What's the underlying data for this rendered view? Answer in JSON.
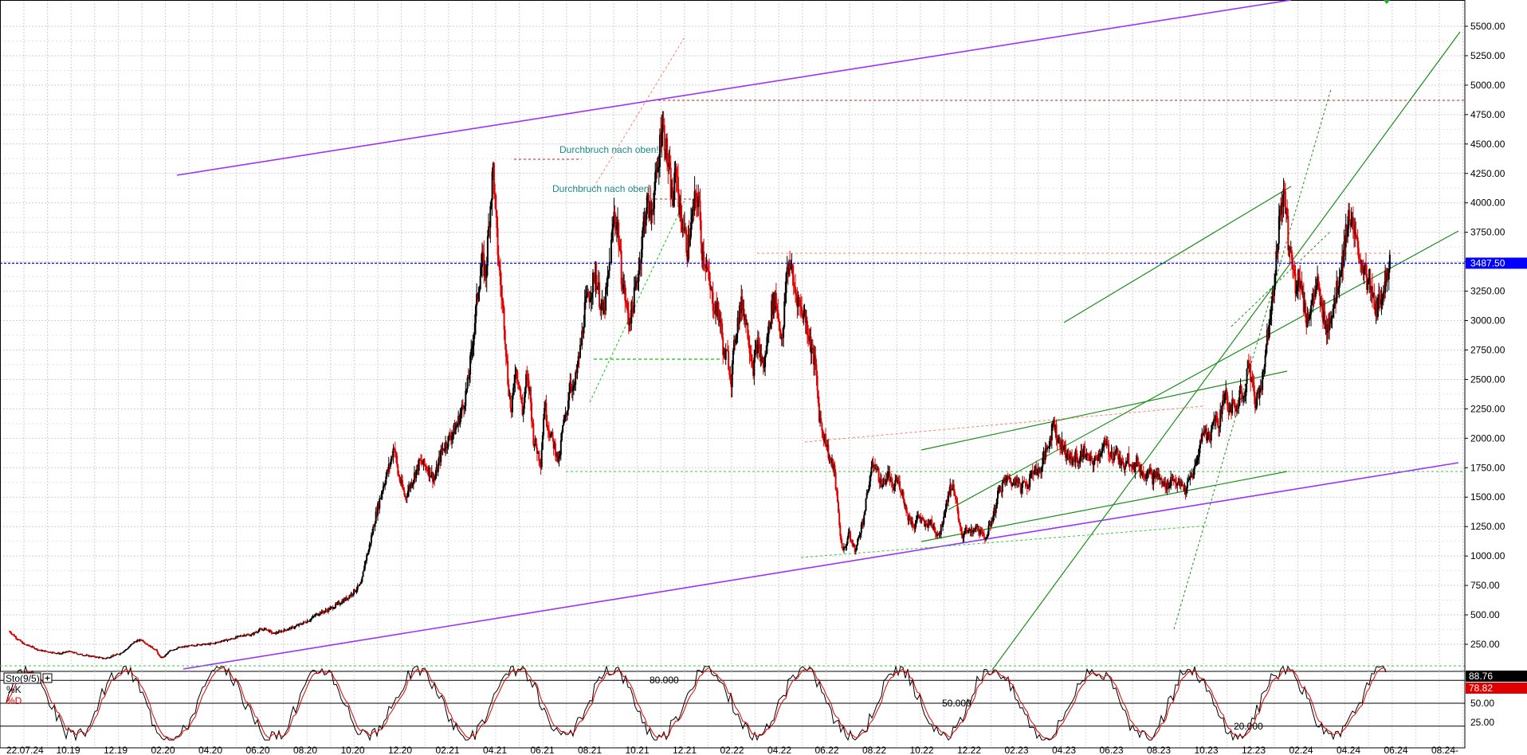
{
  "chart_data": {
    "type": "candlestick",
    "main": {
      "y_ticks": [
        "5500.00",
        "5250.00",
        "5000.00",
        "4750.00",
        "4500.00",
        "4250.00",
        "4000.00",
        "3750.00",
        "3500.00",
        "3250.00",
        "3000.00",
        "2750.00",
        "2500.00",
        "2250.00",
        "2000.00",
        "1750.00",
        "1500.00",
        "1250.00",
        "1000.00",
        "750.00",
        "500.00",
        "250.00"
      ],
      "y_tick_values": [
        5500,
        5250,
        5000,
        4750,
        4500,
        4250,
        4000,
        3750,
        3500,
        3250,
        3000,
        2750,
        2500,
        2250,
        2000,
        1750,
        1500,
        1250,
        1000,
        750,
        500,
        250
      ],
      "ylim": [
        70,
        5720
      ],
      "current_price": "3487.50",
      "current_price_value": 3487.5,
      "annotations": [
        {
          "text": "Durchbruch nach oben!",
          "value": 4450
        },
        {
          "text": "Durchbruch nach oben!",
          "value": 4120
        }
      ],
      "price_path": [
        [
          0,
          360
        ],
        [
          0.5,
          330
        ],
        [
          1,
          300
        ],
        [
          2,
          250
        ],
        [
          3,
          230
        ],
        [
          4,
          200
        ],
        [
          5,
          190
        ],
        [
          6,
          180
        ],
        [
          7,
          170
        ],
        [
          8,
          190
        ],
        [
          9,
          175
        ],
        [
          10,
          160
        ],
        [
          11,
          150
        ],
        [
          12,
          140
        ],
        [
          13,
          130
        ],
        [
          14,
          150
        ],
        [
          15,
          170
        ],
        [
          16,
          210
        ],
        [
          17,
          270
        ],
        [
          18,
          290
        ],
        [
          19,
          240
        ],
        [
          20,
          200
        ],
        [
          20.5,
          140
        ],
        [
          21,
          140
        ],
        [
          22,
          200
        ],
        [
          23,
          220
        ],
        [
          24,
          230
        ],
        [
          25,
          240
        ],
        [
          26,
          250
        ],
        [
          27,
          250
        ],
        [
          28,
          260
        ],
        [
          29,
          280
        ],
        [
          30,
          290
        ],
        [
          31,
          310
        ],
        [
          32,
          330
        ],
        [
          33,
          330
        ],
        [
          34,
          370
        ],
        [
          35,
          380
        ],
        [
          36,
          340
        ],
        [
          37,
          360
        ],
        [
          38,
          380
        ],
        [
          39,
          400
        ],
        [
          40,
          430
        ],
        [
          41,
          460
        ],
        [
          42,
          510
        ],
        [
          43,
          530
        ],
        [
          44,
          560
        ],
        [
          45,
          600
        ],
        [
          46,
          640
        ],
        [
          47,
          700
        ],
        [
          48,
          760
        ],
        [
          48.5,
          950
        ],
        [
          49,
          1050
        ],
        [
          49.5,
          1200
        ],
        [
          50,
          1350
        ],
        [
          51,
          1600
        ],
        [
          52,
          1800
        ],
        [
          52.5,
          1950
        ],
        [
          53,
          1700
        ],
        [
          54,
          1500
        ],
        [
          55,
          1650
        ],
        [
          56,
          1800
        ],
        [
          57,
          1750
        ],
        [
          58,
          1650
        ],
        [
          59,
          1900
        ],
        [
          60,
          2000
        ],
        [
          61,
          2100
        ],
        [
          62,
          2300
        ],
        [
          62.5,
          2450
        ],
        [
          63,
          2700
        ],
        [
          63.5,
          3000
        ],
        [
          64,
          3300
        ],
        [
          64.5,
          3500
        ],
        [
          65,
          3400
        ],
        [
          65.5,
          3900
        ],
        [
          66,
          4300
        ],
        [
          66.5,
          3700
        ],
        [
          67,
          3300
        ],
        [
          67.5,
          3000
        ],
        [
          68,
          2500
        ],
        [
          68.5,
          2200
        ],
        [
          69,
          2600
        ],
        [
          69.5,
          2500
        ],
        [
          70,
          2200
        ],
        [
          70.5,
          2500
        ],
        [
          71,
          2400
        ],
        [
          71.5,
          2000
        ],
        [
          72,
          1900
        ],
        [
          72.5,
          1800
        ],
        [
          73,
          2300
        ],
        [
          73.5,
          2100
        ],
        [
          74,
          2000
        ],
        [
          74.5,
          1900
        ],
        [
          75,
          1800
        ],
        [
          75.5,
          2100
        ],
        [
          76,
          2200
        ],
        [
          76.5,
          2500
        ],
        [
          77,
          2400
        ],
        [
          77.5,
          2600
        ],
        [
          78,
          2800
        ],
        [
          78.5,
          3100
        ],
        [
          79,
          3200
        ],
        [
          79.5,
          3300
        ],
        [
          80,
          3400
        ],
        [
          80.5,
          3200
        ],
        [
          81,
          3050
        ],
        [
          81.5,
          3250
        ],
        [
          82,
          3550
        ],
        [
          82.5,
          3900
        ],
        [
          83,
          3800
        ],
        [
          83.5,
          3400
        ],
        [
          84,
          3200
        ],
        [
          84.5,
          3000
        ],
        [
          85,
          3100
        ],
        [
          85.5,
          3300
        ],
        [
          86,
          3500
        ],
        [
          86.5,
          3800
        ],
        [
          87,
          4000
        ],
        [
          87.5,
          3900
        ],
        [
          88,
          4100
        ],
        [
          88.5,
          4300
        ],
        [
          89,
          4700
        ],
        [
          89.5,
          4500
        ],
        [
          90,
          4250
        ],
        [
          90.5,
          4000
        ],
        [
          91,
          4300
        ],
        [
          91.5,
          3900
        ],
        [
          92,
          3800
        ],
        [
          92.5,
          3600
        ],
        [
          93,
          3800
        ],
        [
          93.5,
          4000
        ],
        [
          94,
          4050
        ],
        [
          94.5,
          3600
        ],
        [
          95,
          3500
        ],
        [
          95.5,
          3300
        ],
        [
          96,
          3150
        ],
        [
          96.5,
          3100
        ],
        [
          97,
          3000
        ],
        [
          97.5,
          2700
        ],
        [
          98,
          2700
        ],
        [
          98.5,
          2500
        ],
        [
          99,
          2850
        ],
        [
          99.5,
          3050
        ],
        [
          100,
          3150
        ],
        [
          100.5,
          3000
        ],
        [
          101,
          2800
        ],
        [
          101.5,
          2600
        ],
        [
          102,
          2800
        ],
        [
          102.5,
          2700
        ],
        [
          103,
          2600
        ],
        [
          103.5,
          2900
        ],
        [
          104,
          3100
        ],
        [
          104.5,
          3200
        ],
        [
          105,
          3000
        ],
        [
          105.5,
          2800
        ],
        [
          106,
          3400
        ],
        [
          106.5,
          3500
        ],
        [
          107,
          3300
        ],
        [
          107.5,
          3200
        ],
        [
          108,
          3100
        ],
        [
          108.5,
          3050
        ],
        [
          109,
          2900
        ],
        [
          109.5,
          2750
        ],
        [
          110,
          2600
        ],
        [
          110.5,
          2200
        ],
        [
          111,
          2050
        ],
        [
          111.5,
          1950
        ],
        [
          112,
          1800
        ],
        [
          112.5,
          1750
        ],
        [
          113,
          1450
        ],
        [
          113.5,
          1100
        ],
        [
          114,
          1050
        ],
        [
          114.5,
          1200
        ],
        [
          115,
          1100
        ],
        [
          115.5,
          1050
        ],
        [
          116,
          1200
        ],
        [
          116.5,
          1300
        ],
        [
          117,
          1500
        ],
        [
          117.5,
          1700
        ],
        [
          118,
          1800
        ],
        [
          118.5,
          1700
        ],
        [
          119,
          1600
        ],
        [
          119.5,
          1650
        ],
        [
          120,
          1700
        ],
        [
          120.5,
          1550
        ],
        [
          121,
          1650
        ],
        [
          121.5,
          1600
        ],
        [
          122,
          1500
        ],
        [
          122.5,
          1350
        ],
        [
          123,
          1300
        ],
        [
          123.5,
          1250
        ],
        [
          124,
          1350
        ],
        [
          124.5,
          1300
        ],
        [
          125,
          1250
        ],
        [
          125.5,
          1300
        ],
        [
          126,
          1250
        ],
        [
          126.5,
          1200
        ],
        [
          127,
          1200
        ],
        [
          127.5,
          1350
        ],
        [
          128,
          1500
        ],
        [
          128.5,
          1600
        ],
        [
          129,
          1550
        ],
        [
          129.5,
          1300
        ],
        [
          130,
          1150
        ],
        [
          130.5,
          1250
        ],
        [
          131,
          1200
        ],
        [
          131.5,
          1200
        ],
        [
          132,
          1250
        ],
        [
          132.5,
          1200
        ],
        [
          133,
          1150
        ],
        [
          133.5,
          1200
        ],
        [
          134,
          1300
        ],
        [
          134.5,
          1400
        ],
        [
          135,
          1550
        ],
        [
          135.5,
          1600
        ],
        [
          136,
          1650
        ],
        [
          136.5,
          1650
        ],
        [
          137,
          1600
        ],
        [
          137.5,
          1700
        ],
        [
          138,
          1550
        ],
        [
          138.5,
          1650
        ],
        [
          139,
          1600
        ],
        [
          139.5,
          1700
        ],
        [
          140,
          1750
        ],
        [
          140.5,
          1700
        ],
        [
          141,
          1800
        ],
        [
          141.5,
          1900
        ],
        [
          142,
          2000
        ],
        [
          142.5,
          2150
        ],
        [
          143,
          2000
        ],
        [
          143.5,
          1950
        ],
        [
          144,
          1900
        ],
        [
          144.5,
          1850
        ],
        [
          145,
          1800
        ],
        [
          145.5,
          1850
        ],
        [
          146,
          1800
        ],
        [
          146.5,
          1900
        ],
        [
          147,
          1850
        ],
        [
          147.5,
          1800
        ],
        [
          148,
          1800
        ],
        [
          148.5,
          1850
        ],
        [
          149,
          1900
        ],
        [
          149.5,
          1950
        ],
        [
          150,
          1900
        ],
        [
          150.5,
          1850
        ],
        [
          151,
          1900
        ],
        [
          151.5,
          1800
        ],
        [
          152,
          1750
        ],
        [
          152.5,
          1850
        ],
        [
          153,
          1800
        ],
        [
          153.5,
          1750
        ],
        [
          154,
          1800
        ],
        [
          154.5,
          1700
        ],
        [
          155,
          1700
        ],
        [
          155.5,
          1750
        ],
        [
          156,
          1650
        ],
        [
          156.5,
          1700
        ],
        [
          157,
          1650
        ],
        [
          157.5,
          1600
        ],
        [
          158,
          1600
        ],
        [
          158.5,
          1650
        ],
        [
          159,
          1650
        ],
        [
          159.5,
          1600
        ],
        [
          160,
          1600
        ],
        [
          160.5,
          1550
        ],
        [
          161,
          1650
        ],
        [
          161.5,
          1700
        ],
        [
          162,
          1800
        ],
        [
          162.5,
          1950
        ],
        [
          163,
          2100
        ],
        [
          163.5,
          2000
        ],
        [
          164,
          2050
        ],
        [
          164.5,
          2200
        ],
        [
          165,
          2100
        ],
        [
          165.5,
          2300
        ],
        [
          166,
          2400
        ],
        [
          166.5,
          2200
        ],
        [
          167,
          2300
        ],
        [
          167.5,
          2250
        ],
        [
          168,
          2400
        ],
        [
          168.5,
          2350
        ],
        [
          169,
          2650
        ],
        [
          169.5,
          2500
        ],
        [
          170,
          2300
        ],
        [
          170.5,
          2400
        ],
        [
          171,
          2500
        ],
        [
          171.5,
          2800
        ],
        [
          172,
          3050
        ],
        [
          172.5,
          3300
        ],
        [
          173,
          3600
        ],
        [
          173.5,
          4000
        ],
        [
          174,
          4050
        ],
        [
          174.5,
          3700
        ],
        [
          175,
          3500
        ],
        [
          175.5,
          3300
        ],
        [
          176,
          3400
        ],
        [
          176.5,
          3200
        ],
        [
          177,
          3000
        ],
        [
          177.5,
          3100
        ],
        [
          178,
          3200
        ],
        [
          178.5,
          3300
        ],
        [
          179,
          3100
        ],
        [
          179.5,
          3000
        ],
        [
          180,
          2950
        ],
        [
          180.5,
          3100
        ],
        [
          181,
          3200
        ],
        [
          181.5,
          3400
        ],
        [
          182,
          3550
        ],
        [
          182.5,
          3800
        ],
        [
          183,
          3900
        ],
        [
          183.5,
          3700
        ],
        [
          184,
          3600
        ],
        [
          184.5,
          3500
        ],
        [
          185,
          3400
        ],
        [
          185.5,
          3300
        ],
        [
          186,
          3200
        ],
        [
          186.5,
          3100
        ],
        [
          187,
          3150
        ],
        [
          187.5,
          3300
        ],
        [
          188,
          3400
        ],
        [
          188.5,
          3487
        ]
      ]
    },
    "x_ticks": [
      "22.07.24",
      "10.19",
      "12.19",
      "02.20",
      "04.20",
      "06.20",
      "08.20",
      "10.20",
      "12.20",
      "02.21",
      "04.21",
      "06.21",
      "08.21",
      "10.21",
      "12.21",
      "02.22",
      "04.22",
      "06.22",
      "08.22",
      "10.22",
      "12.22",
      "02.23",
      "04.23",
      "06.23",
      "08.23",
      "10.23",
      "12.23",
      "02.24",
      "04.24",
      "06.24",
      "08.24",
      "-"
    ],
    "stochastic": {
      "label": "Sto(9/5)",
      "k_label": "%K",
      "d_label": "%D",
      "k_value": "88.76",
      "d_value": "78.82",
      "levels": [
        {
          "label": "80.000",
          "value": 80
        },
        {
          "label": "50.000",
          "value": 50
        },
        {
          "label": "20.000",
          "value": 20
        }
      ],
      "y_ticks": [
        "50.00",
        "25.00"
      ],
      "y_tick_values": [
        50,
        25
      ]
    },
    "colors": {
      "k": "#000000",
      "d": "#e00000",
      "price_tag": "#0000ff",
      "k_tag": "#000000",
      "d_tag": "#e00000"
    }
  }
}
